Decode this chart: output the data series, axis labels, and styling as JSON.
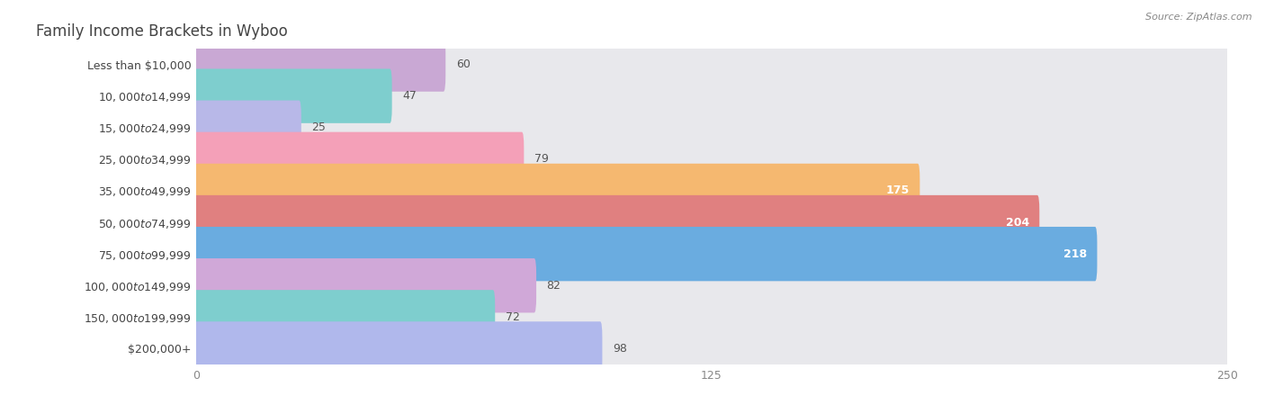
{
  "title": "Family Income Brackets in Wyboo",
  "source": "Source: ZipAtlas.com",
  "categories": [
    "Less than $10,000",
    "$10,000 to $14,999",
    "$15,000 to $24,999",
    "$25,000 to $34,999",
    "$35,000 to $49,999",
    "$50,000 to $74,999",
    "$75,000 to $99,999",
    "$100,000 to $149,999",
    "$150,000 to $199,999",
    "$200,000+"
  ],
  "values": [
    60,
    47,
    25,
    79,
    175,
    204,
    218,
    82,
    72,
    98
  ],
  "bar_colors": [
    "#c9a8d4",
    "#7ecece",
    "#b8b8e8",
    "#f4a0b8",
    "#f5b870",
    "#e08080",
    "#6aace0",
    "#d0a8d8",
    "#7ecece",
    "#b0b8ec"
  ],
  "xlim": [
    0,
    250
  ],
  "xticks": [
    0,
    125,
    250
  ],
  "bar_bg_color": "#e8e8ec",
  "title_fontsize": 12,
  "label_fontsize": 9,
  "value_fontsize": 9,
  "row_colors": [
    "#f7f7f7",
    "#f0f0f0"
  ]
}
